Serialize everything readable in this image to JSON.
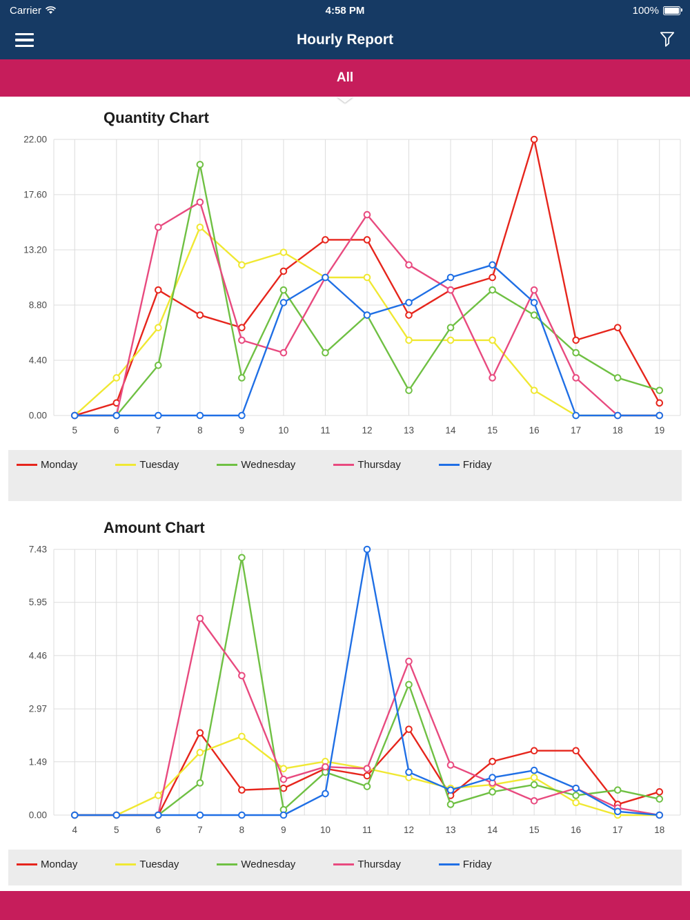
{
  "status_bar": {
    "carrier": "Carrier",
    "time": "4:58 PM",
    "battery_pct": "100%"
  },
  "nav_bar": {
    "title": "Hourly Report"
  },
  "filter_tab": {
    "label": "All"
  },
  "colors": {
    "header_bg": "#163a64",
    "accent_bg": "#c61d5b",
    "legend_bg": "#ececec",
    "grid": "#dcdcdc",
    "axis_text": "#4a4a4a"
  },
  "chart_data": [
    {
      "type": "line",
      "title": "Quantity Chart",
      "x": [
        5,
        6,
        7,
        8,
        9,
        10,
        11,
        12,
        13,
        14,
        15,
        16,
        17,
        18,
        19
      ],
      "y_ticks": [
        0,
        4.4,
        8.8,
        13.2,
        17.6,
        22
      ],
      "ylim": [
        0,
        22
      ],
      "grid": true,
      "minor_x_grid": false,
      "legend_position": "bottom",
      "series": [
        {
          "name": "Monday",
          "color": "#e6251c",
          "values": [
            0,
            1,
            10,
            8,
            7,
            11.5,
            14,
            14,
            8,
            10,
            11,
            22,
            6,
            7,
            1
          ]
        },
        {
          "name": "Tuesday",
          "color": "#f0e832",
          "values": [
            0,
            3,
            7,
            15,
            12,
            13,
            11,
            11,
            6,
            6,
            6,
            2,
            0,
            0,
            0
          ]
        },
        {
          "name": "Wednesday",
          "color": "#6fc043",
          "values": [
            0,
            0,
            4,
            20,
            3,
            10,
            5,
            8,
            2,
            7,
            10,
            8,
            5,
            3,
            2
          ]
        },
        {
          "name": "Thursday",
          "color": "#e84a7f",
          "values": [
            0,
            0,
            15,
            17,
            6,
            5,
            11,
            16,
            12,
            10,
            3,
            10,
            3,
            0,
            0
          ]
        },
        {
          "name": "Friday",
          "color": "#1f6fe5",
          "values": [
            0,
            0,
            0,
            0,
            0,
            9,
            11,
            8,
            9,
            11,
            12,
            9,
            0,
            0,
            0
          ]
        }
      ]
    },
    {
      "type": "line",
      "title": "Amount Chart",
      "x": [
        4,
        5,
        6,
        7,
        8,
        9,
        10,
        11,
        12,
        13,
        14,
        15,
        16,
        17,
        18
      ],
      "y_ticks": [
        0,
        1.49,
        2.97,
        4.46,
        5.95,
        7.43
      ],
      "ylim": [
        0,
        7.43
      ],
      "grid": true,
      "minor_x_grid": true,
      "legend_position": "bottom",
      "series": [
        {
          "name": "Monday",
          "color": "#e6251c",
          "values": [
            0,
            0,
            0,
            2.3,
            0.7,
            0.75,
            1.3,
            1.1,
            2.4,
            0.55,
            1.5,
            1.8,
            1.8,
            0.3,
            0.65
          ]
        },
        {
          "name": "Tuesday",
          "color": "#f0e832",
          "values": [
            0,
            0,
            0.55,
            1.75,
            2.2,
            1.3,
            1.5,
            1.3,
            1.05,
            0.75,
            0.85,
            1.05,
            0.35,
            0,
            0
          ]
        },
        {
          "name": "Wednesday",
          "color": "#6fc043",
          "values": [
            0,
            0,
            0,
            0.9,
            7.2,
            0.15,
            1.2,
            0.8,
            3.65,
            0.3,
            0.65,
            0.85,
            0.55,
            0.7,
            0.45
          ]
        },
        {
          "name": "Thursday",
          "color": "#e84a7f",
          "values": [
            0,
            0,
            0,
            5.5,
            3.9,
            1.0,
            1.35,
            1.3,
            4.3,
            1.4,
            0.9,
            0.4,
            0.75,
            0.2,
            0
          ]
        },
        {
          "name": "Friday",
          "color": "#1f6fe5",
          "values": [
            0,
            0,
            0,
            0,
            0,
            0,
            0.6,
            7.43,
            1.2,
            0.7,
            1.05,
            1.25,
            0.75,
            0.1,
            0
          ]
        }
      ]
    }
  ]
}
